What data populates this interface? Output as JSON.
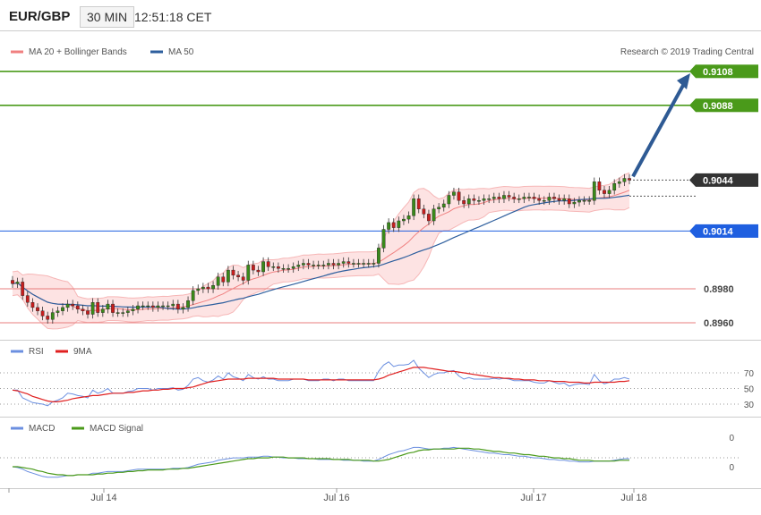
{
  "header": {
    "symbol": "EUR/GBP",
    "timeframe": "30 MIN",
    "time": "12:51:18 CET"
  },
  "price_panel": {
    "legend": [
      {
        "name": "MA 20 + Bollinger Bands",
        "color": "#f08080"
      },
      {
        "name": "MA 50",
        "color": "#2e5f9e"
      }
    ],
    "credit": "Research © 2019 Trading Central",
    "levels": [
      {
        "value": 0.9108,
        "label": "0.9108",
        "color": "#4a9a1a",
        "kind": "resistance"
      },
      {
        "value": 0.9088,
        "label": "0.9088",
        "color": "#4a9a1a",
        "kind": "resistance"
      },
      {
        "value": 0.9044,
        "label": "0.9044",
        "color": "#333333",
        "kind": "last"
      },
      {
        "value": 0.9014,
        "label": "0.9014",
        "color": "#1f5fe0",
        "kind": "pivot"
      },
      {
        "value": 0.898,
        "label": "0.8980",
        "color": "#e87c7c",
        "kind": "support"
      },
      {
        "value": 0.896,
        "label": "0.8960",
        "color": "#e87c7c",
        "kind": "support"
      }
    ]
  },
  "rsi_panel": {
    "legend": [
      {
        "name": "RSI",
        "color": "#6b8fe0"
      },
      {
        "name": "9MA",
        "color": "#e02020"
      }
    ],
    "ticks": [
      "70",
      "50",
      "30"
    ]
  },
  "macd_panel": {
    "legend": [
      {
        "name": "MACD",
        "color": "#6b8fe0"
      },
      {
        "name": "MACD Signal",
        "color": "#4a9a1a"
      }
    ],
    "ticks": [
      "0",
      "0"
    ]
  },
  "chart_data": {
    "type": "candlestick",
    "x_labels": [
      "Jul 14",
      "Jul 16",
      "Jul 17",
      "Jul 18"
    ],
    "ylim": [
      0.8955,
      0.9115
    ],
    "close": [
      0.8983,
      0.8984,
      0.8976,
      0.8972,
      0.8969,
      0.8967,
      0.8964,
      0.8962,
      0.8966,
      0.8967,
      0.8969,
      0.8971,
      0.897,
      0.8968,
      0.8967,
      0.8965,
      0.8972,
      0.8966,
      0.8968,
      0.8971,
      0.8966,
      0.8966,
      0.8966,
      0.8967,
      0.8968,
      0.897,
      0.897,
      0.897,
      0.8969,
      0.897,
      0.897,
      0.897,
      0.8971,
      0.8968,
      0.8969,
      0.8973,
      0.8979,
      0.898,
      0.8981,
      0.898,
      0.8982,
      0.8987,
      0.8984,
      0.8991,
      0.8988,
      0.8987,
      0.8985,
      0.8994,
      0.8991,
      0.899,
      0.8996,
      0.8993,
      0.8993,
      0.8992,
      0.8992,
      0.8992,
      0.8993,
      0.8994,
      0.8995,
      0.8994,
      0.8994,
      0.8994,
      0.8994,
      0.8995,
      0.8994,
      0.8995,
      0.8996,
      0.8995,
      0.8995,
      0.8995,
      0.8995,
      0.8995,
      0.8995,
      0.9004,
      0.9015,
      0.9019,
      0.9016,
      0.902,
      0.9021,
      0.9023,
      0.9033,
      0.9027,
      0.9024,
      0.902,
      0.9027,
      0.9028,
      0.903,
      0.9035,
      0.9037,
      0.9032,
      0.903,
      0.9033,
      0.9032,
      0.9032,
      0.9033,
      0.9033,
      0.9034,
      0.9033,
      0.9035,
      0.9034,
      0.9033,
      0.9033,
      0.9034,
      0.9034,
      0.9033,
      0.9032,
      0.9032,
      0.9034,
      0.9033,
      0.9032,
      0.9033,
      0.903,
      0.9031,
      0.9032,
      0.9032,
      0.9032,
      0.9043,
      0.9038,
      0.9036,
      0.9038,
      0.9042,
      0.9043,
      0.9045,
      0.9044
    ],
    "rsi": [
      48,
      48,
      38,
      35,
      32,
      31,
      30,
      28,
      33,
      35,
      38,
      44,
      43,
      41,
      40,
      38,
      48,
      44,
      46,
      50,
      44,
      44,
      44,
      46,
      47,
      50,
      50,
      50,
      48,
      50,
      50,
      50,
      51,
      48,
      49,
      54,
      62,
      64,
      60,
      58,
      61,
      66,
      62,
      70,
      65,
      63,
      60,
      68,
      64,
      62,
      65,
      62,
      62,
      60,
      60,
      60,
      62,
      62,
      62,
      60,
      60,
      60,
      62,
      62,
      60,
      62,
      62,
      60,
      60,
      60,
      60,
      60,
      60,
      72,
      80,
      84,
      78,
      80,
      80,
      81,
      86,
      76,
      70,
      64,
      68,
      70,
      70,
      72,
      73,
      66,
      62,
      64,
      62,
      62,
      62,
      62,
      63,
      62,
      63,
      62,
      60,
      60,
      60,
      60,
      58,
      57,
      57,
      60,
      58,
      56,
      57,
      53,
      55,
      56,
      56,
      55,
      68,
      60,
      56,
      58,
      62,
      62,
      64,
      62
    ],
    "rsi_ma": [
      48,
      47,
      45,
      43,
      40,
      38,
      36,
      34,
      33,
      33,
      34,
      35,
      37,
      38,
      39,
      40,
      41,
      41,
      42,
      43,
      44,
      44,
      44,
      45,
      45,
      46,
      47,
      47,
      48,
      48,
      49,
      49,
      50,
      50,
      50,
      51,
      52,
      54,
      56,
      58,
      59,
      60,
      61,
      62,
      62,
      62,
      62,
      63,
      63,
      63,
      63,
      63,
      63,
      62,
      62,
      62,
      62,
      62,
      62,
      61,
      61,
      61,
      61,
      61,
      61,
      61,
      61,
      61,
      61,
      61,
      61,
      61,
      61,
      62,
      64,
      67,
      69,
      71,
      73,
      75,
      77,
      77,
      77,
      76,
      75,
      74,
      73,
      72,
      72,
      71,
      70,
      69,
      68,
      67,
      66,
      65,
      64,
      64,
      63,
      63,
      62,
      62,
      61,
      61,
      61,
      60,
      60,
      60,
      59,
      59,
      59,
      58,
      58,
      58,
      57,
      57,
      58,
      58,
      58,
      58,
      58,
      59,
      59,
      60
    ],
    "macd": [
      0,
      -1,
      -3,
      -6,
      -8,
      -10,
      -12,
      -13,
      -13,
      -13,
      -12,
      -11,
      -11,
      -10,
      -10,
      -10,
      -8,
      -8,
      -7,
      -6,
      -6,
      -6,
      -6,
      -5,
      -4,
      -3,
      -3,
      -3,
      -3,
      -3,
      -3,
      -3,
      -2,
      -2,
      -2,
      -1,
      1,
      3,
      4,
      5,
      6,
      8,
      9,
      10,
      11,
      11,
      11,
      12,
      12,
      12,
      13,
      13,
      12,
      12,
      11,
      11,
      11,
      10,
      10,
      10,
      10,
      9,
      9,
      9,
      9,
      9,
      8,
      8,
      8,
      8,
      7,
      7,
      7,
      9,
      12,
      15,
      17,
      19,
      20,
      22,
      24,
      24,
      23,
      22,
      22,
      22,
      23,
      23,
      24,
      23,
      22,
      21,
      20,
      19,
      18,
      17,
      17,
      16,
      15,
      15,
      14,
      13,
      13,
      12,
      11,
      11,
      10,
      9,
      9,
      8,
      8,
      7,
      7,
      6,
      6,
      6,
      7,
      7,
      7,
      7,
      8,
      9,
      10,
      10
    ],
    "macd_signal": [
      0,
      0,
      -1,
      -2,
      -3,
      -5,
      -6,
      -8,
      -9,
      -10,
      -10,
      -11,
      -11,
      -10,
      -10,
      -10,
      -10,
      -9,
      -9,
      -8,
      -8,
      -7,
      -7,
      -6,
      -6,
      -5,
      -5,
      -4,
      -4,
      -4,
      -4,
      -3,
      -3,
      -3,
      -2,
      -2,
      -1,
      0,
      1,
      2,
      3,
      4,
      5,
      6,
      7,
      8,
      9,
      10,
      10,
      11,
      11,
      11,
      12,
      12,
      12,
      11,
      11,
      11,
      11,
      10,
      10,
      10,
      10,
      10,
      9,
      9,
      9,
      9,
      8,
      8,
      8,
      8,
      7,
      7,
      8,
      9,
      11,
      13,
      15,
      17,
      18,
      20,
      21,
      21,
      22,
      22,
      22,
      22,
      22,
      23,
      23,
      23,
      22,
      22,
      21,
      20,
      19,
      19,
      18,
      17,
      17,
      16,
      15,
      15,
      14,
      13,
      13,
      12,
      11,
      11,
      10,
      10,
      9,
      8,
      8,
      8,
      7,
      7,
      7,
      7,
      7,
      8,
      8,
      8
    ]
  }
}
